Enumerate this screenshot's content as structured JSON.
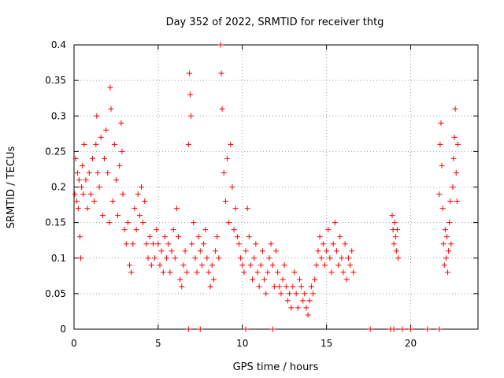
{
  "chart_data": {
    "type": "scatter",
    "title": "Day 352 of 2022, SRMTID for receiver thtg",
    "xlabel": "GPS time / hours",
    "ylabel": "SRMTID / TECUs",
    "xlim": [
      0,
      24
    ],
    "ylim": [
      0,
      0.4
    ],
    "xticks": [
      0,
      5,
      10,
      15,
      20
    ],
    "xtick_labels": [
      "0",
      "5",
      "10",
      "15",
      "20"
    ],
    "yticks": [
      0,
      0.05,
      0.1,
      0.15,
      0.2,
      0.25,
      0.3,
      0.35,
      0.4
    ],
    "ytick_labels": [
      "0",
      "0.05",
      "0.1",
      "0.15",
      "0.2",
      "0.25",
      "0.3",
      "0.35",
      "0.4"
    ],
    "grid": true,
    "marker": "plus",
    "color": "#ff0000",
    "series": [
      {
        "name": "SRMTID",
        "points": [
          [
            0.05,
            0.19
          ],
          [
            0.1,
            0.24
          ],
          [
            0.15,
            0.18
          ],
          [
            0.2,
            0.22
          ],
          [
            0.25,
            0.17
          ],
          [
            0.3,
            0.21
          ],
          [
            0.35,
            0.13
          ],
          [
            0.4,
            0.1
          ],
          [
            0.45,
            0.2
          ],
          [
            0.5,
            0.23
          ],
          [
            0.55,
            0.19
          ],
          [
            0.6,
            0.26
          ],
          [
            0.7,
            0.21
          ],
          [
            0.8,
            0.17
          ],
          [
            0.9,
            0.22
          ],
          [
            1.0,
            0.19
          ],
          [
            1.1,
            0.24
          ],
          [
            1.2,
            0.18
          ],
          [
            1.3,
            0.26
          ],
          [
            1.35,
            0.3
          ],
          [
            1.4,
            0.22
          ],
          [
            1.5,
            0.2
          ],
          [
            1.6,
            0.27
          ],
          [
            1.7,
            0.16
          ],
          [
            1.8,
            0.24
          ],
          [
            1.9,
            0.28
          ],
          [
            2.0,
            0.22
          ],
          [
            2.1,
            0.15
          ],
          [
            2.15,
            0.34
          ],
          [
            2.2,
            0.31
          ],
          [
            2.3,
            0.18
          ],
          [
            2.4,
            0.26
          ],
          [
            2.5,
            0.21
          ],
          [
            2.6,
            0.16
          ],
          [
            2.7,
            0.23
          ],
          [
            2.8,
            0.29
          ],
          [
            2.85,
            0.25
          ],
          [
            2.9,
            0.19
          ],
          [
            3.0,
            0.14
          ],
          [
            3.1,
            0.12
          ],
          [
            3.2,
            0.15
          ],
          [
            3.3,
            0.09
          ],
          [
            3.4,
            0.08
          ],
          [
            3.5,
            0.12
          ],
          [
            3.6,
            0.17
          ],
          [
            3.7,
            0.14
          ],
          [
            3.8,
            0.19
          ],
          [
            3.9,
            0.16
          ],
          [
            4.0,
            0.2
          ],
          [
            4.1,
            0.15
          ],
          [
            4.2,
            0.18
          ],
          [
            4.3,
            0.12
          ],
          [
            4.4,
            0.1
          ],
          [
            4.5,
            0.13
          ],
          [
            4.6,
            0.09
          ],
          [
            4.7,
            0.12
          ],
          [
            4.8,
            0.1
          ],
          [
            4.9,
            0.14
          ],
          [
            5.0,
            0.12
          ],
          [
            5.1,
            0.09
          ],
          [
            5.2,
            0.11
          ],
          [
            5.3,
            0.08
          ],
          [
            5.4,
            0.13
          ],
          [
            5.5,
            0.1
          ],
          [
            5.6,
            0.12
          ],
          [
            5.7,
            0.08
          ],
          [
            5.8,
            0.11
          ],
          [
            5.9,
            0.14
          ],
          [
            6.0,
            0.1
          ],
          [
            6.1,
            0.17
          ],
          [
            6.2,
            0.13
          ],
          [
            6.3,
            0.07
          ],
          [
            6.4,
            0.06
          ],
          [
            6.5,
            0.09
          ],
          [
            6.6,
            0.11
          ],
          [
            6.7,
            0.08
          ],
          [
            6.8,
            0.26
          ],
          [
            6.85,
            0.36
          ],
          [
            6.9,
            0.33
          ],
          [
            6.95,
            0.3
          ],
          [
            7.0,
            0.12
          ],
          [
            7.1,
            0.15
          ],
          [
            7.2,
            0.1
          ],
          [
            7.3,
            0.08
          ],
          [
            7.4,
            0.13
          ],
          [
            7.5,
            0.11
          ],
          [
            7.6,
            0.09
          ],
          [
            7.7,
            0.12
          ],
          [
            7.8,
            0.14
          ],
          [
            7.9,
            0.1
          ],
          [
            8.0,
            0.08
          ],
          [
            8.1,
            0.06
          ],
          [
            8.2,
            0.09
          ],
          [
            8.3,
            0.07
          ],
          [
            8.4,
            0.11
          ],
          [
            8.5,
            0.13
          ],
          [
            8.6,
            0.1
          ],
          [
            8.7,
            0.4
          ],
          [
            8.75,
            0.36
          ],
          [
            8.8,
            0.31
          ],
          [
            8.9,
            0.22
          ],
          [
            9.0,
            0.18
          ],
          [
            9.1,
            0.24
          ],
          [
            9.2,
            0.15
          ],
          [
            9.3,
            0.26
          ],
          [
            9.4,
            0.2
          ],
          [
            9.5,
            0.14
          ],
          [
            9.6,
            0.17
          ],
          [
            9.7,
            0.13
          ],
          [
            9.8,
            0.12
          ],
          [
            9.9,
            0.1
          ],
          [
            10.0,
            0.09
          ],
          [
            10.1,
            0.08
          ],
          [
            10.2,
            0.11
          ],
          [
            10.3,
            0.17
          ],
          [
            10.4,
            0.13
          ],
          [
            10.5,
            0.09
          ],
          [
            10.6,
            0.07
          ],
          [
            10.7,
            0.1
          ],
          [
            10.8,
            0.12
          ],
          [
            10.9,
            0.08
          ],
          [
            11.0,
            0.06
          ],
          [
            11.1,
            0.09
          ],
          [
            11.2,
            0.11
          ],
          [
            11.3,
            0.07
          ],
          [
            11.4,
            0.05
          ],
          [
            11.5,
            0.08
          ],
          [
            11.6,
            0.1
          ],
          [
            11.7,
            0.12
          ],
          [
            11.8,
            0.09
          ],
          [
            11.9,
            0.06
          ],
          [
            12.0,
            0.11
          ],
          [
            12.1,
            0.08
          ],
          [
            12.2,
            0.06
          ],
          [
            12.3,
            0.05
          ],
          [
            12.4,
            0.07
          ],
          [
            12.5,
            0.09
          ],
          [
            12.6,
            0.06
          ],
          [
            12.7,
            0.04
          ],
          [
            12.8,
            0.05
          ],
          [
            12.9,
            0.03
          ],
          [
            13.0,
            0.06
          ],
          [
            13.1,
            0.08
          ],
          [
            13.2,
            0.05
          ],
          [
            13.3,
            0.03
          ],
          [
            13.4,
            0.07
          ],
          [
            13.5,
            0.06
          ],
          [
            13.6,
            0.04
          ],
          [
            13.7,
            0.05
          ],
          [
            13.8,
            0.03
          ],
          [
            13.9,
            0.02
          ],
          [
            14.0,
            0.04
          ],
          [
            14.1,
            0.06
          ],
          [
            14.2,
            0.05
          ],
          [
            14.3,
            0.07
          ],
          [
            14.4,
            0.09
          ],
          [
            14.5,
            0.11
          ],
          [
            14.6,
            0.13
          ],
          [
            14.7,
            0.1
          ],
          [
            14.8,
            0.12
          ],
          [
            14.9,
            0.09
          ],
          [
            15.0,
            0.11
          ],
          [
            15.1,
            0.14
          ],
          [
            15.2,
            0.1
          ],
          [
            15.3,
            0.08
          ],
          [
            15.4,
            0.12
          ],
          [
            15.5,
            0.15
          ],
          [
            15.6,
            0.11
          ],
          [
            15.7,
            0.09
          ],
          [
            15.8,
            0.13
          ],
          [
            15.9,
            0.1
          ],
          [
            16.0,
            0.08
          ],
          [
            16.1,
            0.12
          ],
          [
            16.2,
            0.07
          ],
          [
            16.3,
            0.1
          ],
          [
            16.4,
            0.09
          ],
          [
            16.5,
            0.11
          ],
          [
            16.6,
            0.08
          ],
          [
            18.9,
            0.16
          ],
          [
            18.95,
            0.14
          ],
          [
            19.0,
            0.12
          ],
          [
            19.05,
            0.15
          ],
          [
            19.1,
            0.13
          ],
          [
            19.15,
            0.11
          ],
          [
            19.2,
            0.14
          ],
          [
            19.25,
            0.1
          ],
          [
            21.7,
            0.19
          ],
          [
            21.75,
            0.26
          ],
          [
            21.8,
            0.29
          ],
          [
            21.85,
            0.23
          ],
          [
            21.9,
            0.17
          ],
          [
            21.95,
            0.12
          ],
          [
            22.0,
            0.09
          ],
          [
            22.05,
            0.14
          ],
          [
            22.1,
            0.1
          ],
          [
            22.15,
            0.13
          ],
          [
            22.2,
            0.08
          ],
          [
            22.25,
            0.11
          ],
          [
            22.3,
            0.15
          ],
          [
            22.35,
            0.18
          ],
          [
            22.4,
            0.12
          ],
          [
            22.5,
            0.2
          ],
          [
            22.55,
            0.24
          ],
          [
            22.6,
            0.27
          ],
          [
            22.65,
            0.31
          ],
          [
            22.7,
            0.22
          ],
          [
            22.75,
            0.18
          ],
          [
            22.8,
            0.26
          ]
        ]
      },
      {
        "name": "gap-markers",
        "points": [
          [
            6.8,
            0
          ],
          [
            7.5,
            0
          ],
          [
            10.2,
            0
          ],
          [
            11.8,
            0
          ],
          [
            17.6,
            0
          ],
          [
            18.8,
            0
          ],
          [
            19.0,
            0
          ],
          [
            19.5,
            0
          ],
          [
            20.0,
            0
          ],
          [
            21.0,
            0
          ],
          [
            21.7,
            0
          ]
        ]
      }
    ]
  }
}
